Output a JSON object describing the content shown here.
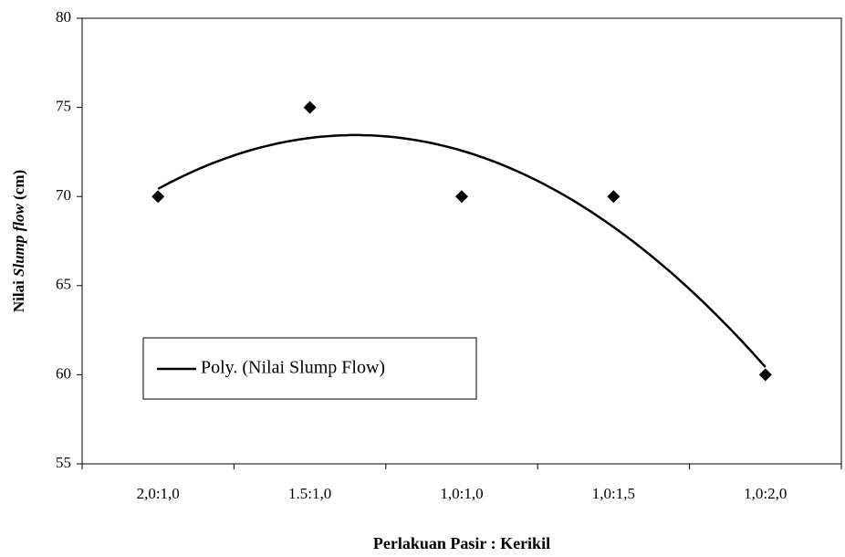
{
  "chart_data": {
    "type": "scatter",
    "ylabel": {
      "prefix": "Nilai",
      "italic": "Slump flow",
      "suffix": "(cm)"
    },
    "xlabel": "Perlakuan Pasir : Kerikil",
    "categories": [
      "2,0:1,0",
      "1.5:1,0",
      "1,0:1,0",
      "1,0:1,5",
      "1,0:2,0"
    ],
    "values": [
      70,
      75,
      70,
      70,
      60
    ],
    "color": "#000000",
    "trendline": {
      "name": "Poly. (Nilai Slump Flow)",
      "order": 2
    },
    "ylim": [
      55,
      80
    ],
    "yticks": [
      55,
      60,
      65,
      70,
      75,
      80
    ],
    "grid": false,
    "legend": "lower left"
  }
}
